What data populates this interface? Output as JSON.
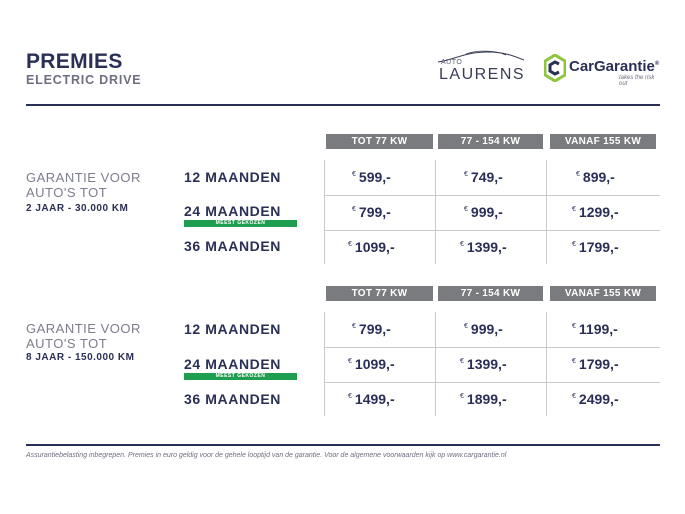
{
  "header": {
    "title": "PREMIES",
    "subtitle": "ELECTRIC DRIVE",
    "logo_left": {
      "prefix": "AUTO",
      "name": "LAURENS"
    },
    "logo_right": {
      "name": "CarGarantie",
      "reg": "®",
      "tagline": "takes the risk out"
    }
  },
  "columns": [
    "TOT 77 KW",
    "77 - 154 KW",
    "VANAF 155 KW"
  ],
  "currency_symbol": "€",
  "sections": [
    {
      "label_line1": "GARANTIE VOOR",
      "label_line2": "AUTO'S TOT",
      "detail": "2 JAAR - 30.000 KM",
      "rows": [
        {
          "period": "12 MAANDEN",
          "badge": "",
          "prices": [
            "599,-",
            "749,-",
            "899,-"
          ]
        },
        {
          "period": "24 MAANDEN",
          "badge": "MEEST GEKOZEN",
          "prices": [
            "799,-",
            "999,-",
            "1299,-"
          ]
        },
        {
          "period": "36 MAANDEN",
          "badge": "",
          "prices": [
            "1099,-",
            "1399,-",
            "1799,-"
          ]
        }
      ]
    },
    {
      "label_line1": "GARANTIE VOOR",
      "label_line2": "AUTO'S TOT",
      "detail": "8 JAAR - 150.000 KM",
      "rows": [
        {
          "period": "12 MAANDEN",
          "badge": "",
          "prices": [
            "799,-",
            "999,-",
            "1199,-"
          ]
        },
        {
          "period": "24 MAANDEN",
          "badge": "MEEST GEKOZEN",
          "prices": [
            "1099,-",
            "1399,-",
            "1799,-"
          ]
        },
        {
          "period": "36 MAANDEN",
          "badge": "",
          "prices": [
            "1499,-",
            "1899,-",
            "2499,-"
          ]
        }
      ]
    }
  ],
  "footer": "Assurantiebelasting inbegrepen. Premies in euro geldig voor de gehele looptijd van de garantie. Voor de algemene voorwaarden kijk op www.cargarantie.nl",
  "colors": {
    "navy": "#2a2f55",
    "header_grey": "#7a7b7e",
    "badge_green": "#1f9e50",
    "lime": "#8cc63f"
  }
}
